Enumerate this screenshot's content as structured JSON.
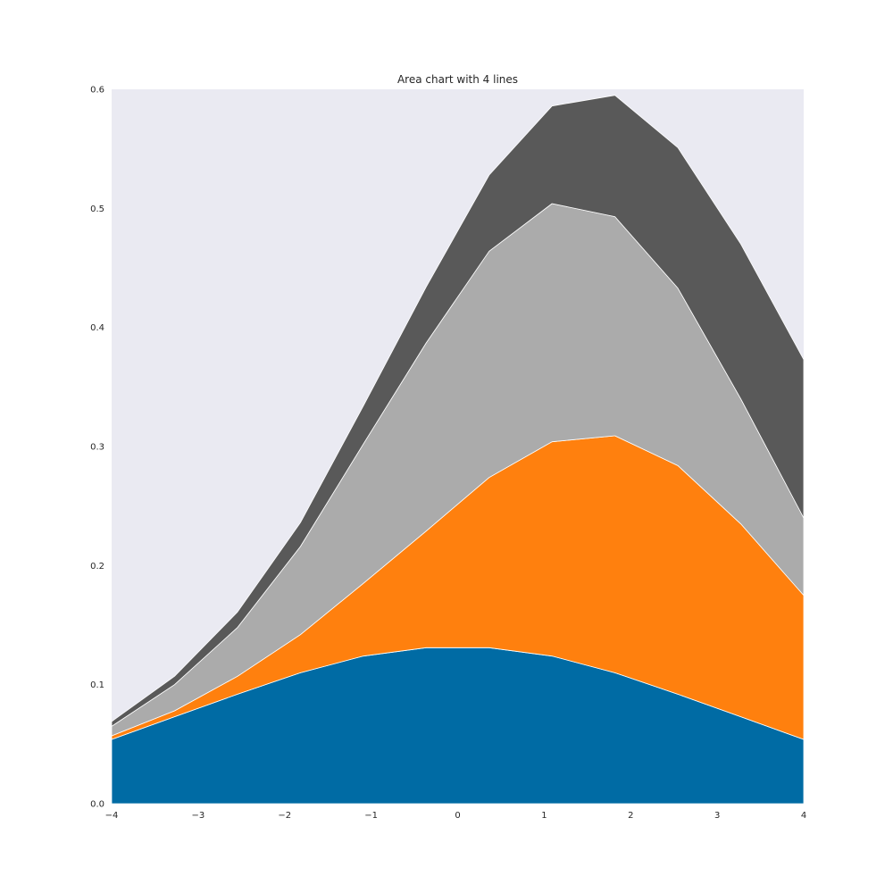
{
  "chart_data": {
    "type": "area",
    "stacked": true,
    "title": "Area chart with 4 lines",
    "xlabel": "",
    "ylabel": "",
    "xlim": [
      -4,
      4
    ],
    "ylim": [
      0,
      0.6
    ],
    "grid": false,
    "background": "#eaeaf2",
    "x_ticks": [
      -4,
      -3,
      -2,
      -1,
      0,
      1,
      2,
      3,
      4
    ],
    "x_tick_labels": [
      "−4",
      "−3",
      "−2",
      "−1",
      "0",
      "1",
      "2",
      "3",
      "4"
    ],
    "y_ticks": [
      0.0,
      0.1,
      0.2,
      0.3,
      0.4,
      0.5,
      0.6
    ],
    "y_tick_labels": [
      "0.0",
      "0.1",
      "0.2",
      "0.3",
      "0.4",
      "0.5",
      "0.6"
    ],
    "x": [
      -4.0,
      -3.273,
      -2.545,
      -1.818,
      -1.091,
      -0.364,
      0.364,
      1.091,
      1.818,
      2.545,
      3.273,
      4.0
    ],
    "series": [
      {
        "color": "#006ba4",
        "values": [
          0.054,
          0.073,
          0.092,
          0.11,
          0.124,
          0.131,
          0.131,
          0.124,
          0.11,
          0.092,
          0.073,
          0.054
        ]
      },
      {
        "color": "#ff800e",
        "values": [
          0.003,
          0.005,
          0.015,
          0.032,
          0.061,
          0.098,
          0.143,
          0.18,
          0.199,
          0.192,
          0.162,
          0.121
        ]
      },
      {
        "color": "#ababab",
        "values": [
          0.008,
          0.022,
          0.041,
          0.074,
          0.117,
          0.158,
          0.19,
          0.2,
          0.184,
          0.149,
          0.105,
          0.065
        ]
      },
      {
        "color": "#595959",
        "values": [
          0.004,
          0.007,
          0.013,
          0.02,
          0.032,
          0.047,
          0.064,
          0.082,
          0.102,
          0.118,
          0.13,
          0.133
        ]
      }
    ]
  }
}
